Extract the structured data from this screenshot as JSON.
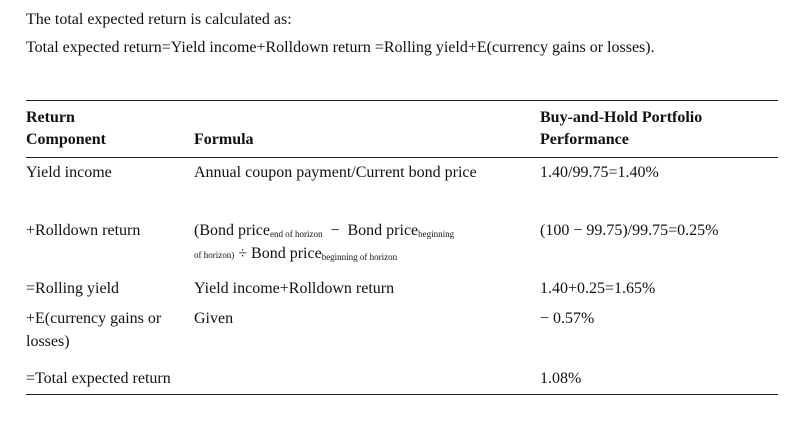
{
  "intro": {
    "line1": "The total expected return is calculated as:",
    "line2": "Total expected return=Yield income+Rolldown return =Rolling yield+E(currency gains or losses)."
  },
  "table": {
    "headers": {
      "component": "Return\nComponent",
      "formula": "Formula",
      "performance": "Buy-and-Hold Portfolio\nPerformance"
    },
    "rows": [
      {
        "component": "Yield income",
        "formula": "Annual coupon payment/Current bond price",
        "performance": "1.40/99.75=1.40%"
      },
      {
        "component": "+Rolldown return",
        "formula_parts": {
          "open": "(Bond price",
          "sub1": "end of horizon",
          "minus": "−",
          "mid": " Bond price",
          "sub2a": "beginning",
          "sub2b": "of horizon)",
          "div": "÷",
          "end": " Bond price",
          "sub3": "beginning of horizon"
        },
        "performance": "(100 − 99.75)/99.75=0.25%"
      },
      {
        "component": "=Rolling yield",
        "formula": "Yield income+Rolldown return",
        "performance": "1.40+0.25=1.65%"
      },
      {
        "component": "+E(currency gains or losses)",
        "formula": "Given",
        "performance": "− 0.57%"
      },
      {
        "component": "=Total expected return",
        "formula": "",
        "performance": "1.08%"
      }
    ]
  }
}
